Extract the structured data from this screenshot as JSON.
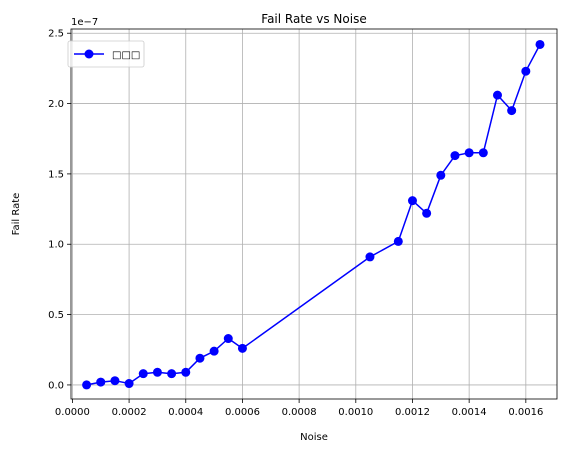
{
  "chart_data": {
    "type": "line",
    "title": "Fail Rate vs Noise",
    "xlabel": "Noise",
    "ylabel": "Fail Rate",
    "y_offset_text": "1e−7",
    "y_scale_factor": 1e-07,
    "xlim": [
      -5e-06,
      0.00171
    ],
    "ylim": [
      -0.1,
      2.53
    ],
    "x_ticks": [
      0.0,
      0.0002,
      0.0004,
      0.0006,
      0.0008,
      0.001,
      0.0012,
      0.0014,
      0.0016
    ],
    "x_tick_labels": [
      "0.0000",
      "0.0002",
      "0.0004",
      "0.0006",
      "0.0008",
      "0.0010",
      "0.0012",
      "0.0014",
      "0.0016"
    ],
    "y_ticks": [
      0.0,
      0.5,
      1.0,
      1.5,
      2.0,
      2.5
    ],
    "y_tick_labels": [
      "0.0",
      "0.5",
      "1.0",
      "1.5",
      "2.0",
      "2.5"
    ],
    "grid": true,
    "legend_position": "top-left",
    "series": [
      {
        "name": "□□□",
        "color": "#0000ff",
        "marker": "circle",
        "x": [
          5e-05,
          0.0001,
          0.00015,
          0.0002,
          0.00025,
          0.0003,
          0.00035,
          0.0004,
          0.00045,
          0.0005,
          0.00055,
          0.0006,
          0.00105,
          0.00115,
          0.0012,
          0.00125,
          0.0013,
          0.00135,
          0.0014,
          0.00145,
          0.0015,
          0.00155,
          0.0016,
          0.00165
        ],
        "y": [
          0.0,
          0.02,
          0.03,
          0.01,
          0.08,
          0.09,
          0.08,
          0.09,
          0.19,
          0.24,
          0.33,
          0.26,
          0.91,
          1.02,
          1.31,
          1.22,
          1.49,
          1.63,
          1.65,
          1.65,
          2.06,
          1.95,
          2.23,
          2.42
        ]
      }
    ]
  }
}
